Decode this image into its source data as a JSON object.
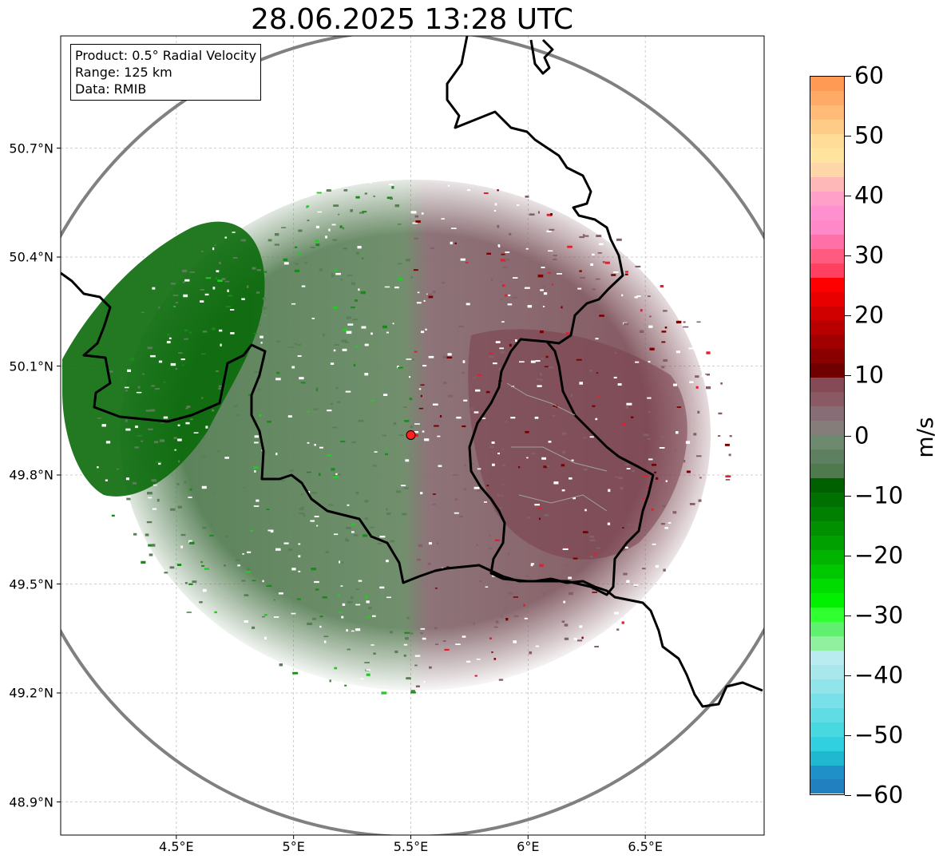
{
  "title": "28.06.2025 13:28 UTC",
  "info_box": {
    "product": "Product: 0.5° Radial Velocity",
    "range": "Range: 125 km",
    "data": "Data: RMIB"
  },
  "axes": {
    "lat_labels": [
      "50.7°N",
      "50.4°N",
      "50.1°N",
      "49.8°N",
      "49.5°N",
      "49.2°N",
      "48.9°N"
    ],
    "lon_labels": [
      "4.5°E",
      "5°E",
      "5.5°E",
      "6°E",
      "6.5°E"
    ],
    "lat_values": [
      50.7,
      50.4,
      50.1,
      49.8,
      49.5,
      49.2,
      48.9
    ],
    "lon_values": [
      4.5,
      5.0,
      5.5,
      6.0,
      6.5
    ],
    "lat_range": [
      48.8,
      51.0
    ],
    "lon_range": [
      4.0,
      7.0
    ],
    "grid": true
  },
  "radar_site": {
    "lat": 49.91,
    "lon": 5.5,
    "marker_color": "#ff2020"
  },
  "colorbar": {
    "unit": "m/s",
    "min": -60,
    "max": 60,
    "tick_labels": [
      "60",
      "50",
      "40",
      "30",
      "20",
      "10",
      "0",
      "−10",
      "−20",
      "−30",
      "−40",
      "−50",
      "−60"
    ],
    "tick_values": [
      60,
      50,
      40,
      30,
      20,
      10,
      0,
      -10,
      -20,
      -30,
      -40,
      -50,
      -60
    ]
  },
  "colors": {
    "range_ring": "#808080",
    "border": "#000000",
    "inbound_green": "#006400",
    "outbound_maroon": "#7a4550"
  }
}
